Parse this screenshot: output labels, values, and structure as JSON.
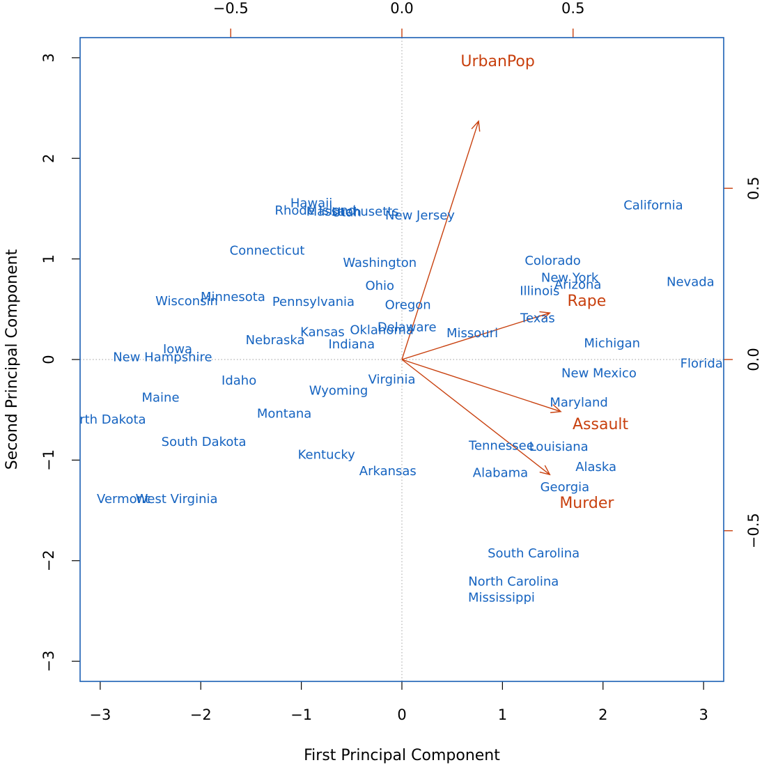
{
  "chart_data": {
    "type": "scatter",
    "subtype": "biplot",
    "xlabel": "First Principal Component",
    "ylabel": "Second Principal Component",
    "xlim": [
      -3.2,
      3.2
    ],
    "ylim": [
      -3.2,
      3.2
    ],
    "x_ticks": [
      -3,
      -2,
      -1,
      0,
      1,
      2,
      3
    ],
    "y_ticks": [
      -3,
      -2,
      -1,
      0,
      1,
      2,
      3
    ],
    "x_tick_labels": [
      "−3",
      "−2",
      "−1",
      "0",
      "1",
      "2",
      "3"
    ],
    "y_tick_labels": [
      "−3",
      "−2",
      "−1",
      "0",
      "1",
      "2",
      "3"
    ],
    "loadings_lim": [
      -0.94,
      0.94
    ],
    "loading_ticks": [
      -0.5,
      0.0,
      0.5
    ],
    "loading_tick_labels": [
      "−0.5",
      "0.0",
      "0.5"
    ],
    "reference_lines": "dotted at x=0 and y=0",
    "colors": {
      "frame": "#1a5fb4",
      "states": "#1563c0",
      "vectors": "#c8400e",
      "axes_text": "#000000"
    },
    "points": [
      {
        "label": "Alabama",
        "x": 0.98,
        "y": -1.13
      },
      {
        "label": "Alaska",
        "x": 1.93,
        "y": -1.07
      },
      {
        "label": "Arizona",
        "x": 1.75,
        "y": 0.74
      },
      {
        "label": "Arkansas",
        "x": -0.14,
        "y": -1.11
      },
      {
        "label": "California",
        "x": 2.5,
        "y": 1.53
      },
      {
        "label": "Colorado",
        "x": 1.5,
        "y": 0.98
      },
      {
        "label": "Connecticut",
        "x": -1.34,
        "y": 1.08
      },
      {
        "label": "Delaware",
        "x": 0.05,
        "y": 0.32
      },
      {
        "label": "Florida",
        "x": 2.98,
        "y": -0.04
      },
      {
        "label": "Georgia",
        "x": 1.62,
        "y": -1.27
      },
      {
        "label": "Hawaii",
        "x": -0.9,
        "y": 1.55
      },
      {
        "label": "Idaho",
        "x": -1.62,
        "y": -0.21
      },
      {
        "label": "Illinois",
        "x": 1.37,
        "y": 0.68
      },
      {
        "label": "Indiana",
        "x": -0.5,
        "y": 0.15
      },
      {
        "label": "Iowa",
        "x": -2.23,
        "y": 0.1
      },
      {
        "label": "Kansas",
        "x": -0.79,
        "y": 0.27
      },
      {
        "label": "Kentucky",
        "x": -0.75,
        "y": -0.95
      },
      {
        "label": "Louisiana",
        "x": 1.56,
        "y": -0.87
      },
      {
        "label": "Maine",
        "x": -2.4,
        "y": -0.38
      },
      {
        "label": "Maryland",
        "x": 1.76,
        "y": -0.43
      },
      {
        "label": "Massachusetts",
        "x": -0.49,
        "y": 1.47
      },
      {
        "label": "Michigan",
        "x": 2.09,
        "y": 0.16
      },
      {
        "label": "Minnesota",
        "x": -1.68,
        "y": 0.62
      },
      {
        "label": "Mississippi",
        "x": 0.99,
        "y": -2.37
      },
      {
        "label": "Missouri",
        "x": 0.7,
        "y": 0.26
      },
      {
        "label": "Montana",
        "x": -1.17,
        "y": -0.54
      },
      {
        "label": "Nebraska",
        "x": -1.26,
        "y": 0.19
      },
      {
        "label": "Nevada",
        "x": 2.87,
        "y": 0.77
      },
      {
        "label": "New Hampshire",
        "x": -2.38,
        "y": 0.02
      },
      {
        "label": "New Jersey",
        "x": 0.18,
        "y": 1.43
      },
      {
        "label": "New Mexico",
        "x": 1.96,
        "y": -0.14
      },
      {
        "label": "New York",
        "x": 1.67,
        "y": 0.81
      },
      {
        "label": "North Carolina",
        "x": 1.11,
        "y": -2.21
      },
      {
        "label": "North Dakota",
        "x": -2.96,
        "y": -0.6
      },
      {
        "label": "Ohio",
        "x": -0.22,
        "y": 0.73
      },
      {
        "label": "Oklahoma",
        "x": -0.2,
        "y": 0.29
      },
      {
        "label": "Oregon",
        "x": 0.06,
        "y": 0.54
      },
      {
        "label": "Pennsylvania",
        "x": -0.88,
        "y": 0.57
      },
      {
        "label": "Rhode Island",
        "x": -0.86,
        "y": 1.48
      },
      {
        "label": "South Carolina",
        "x": 1.31,
        "y": -1.93
      },
      {
        "label": "South Dakota",
        "x": -1.97,
        "y": -0.82
      },
      {
        "label": "Tennessee",
        "x": 0.99,
        "y": -0.86
      },
      {
        "label": "Texas",
        "x": 1.35,
        "y": 0.41
      },
      {
        "label": "Utah",
        "x": -0.55,
        "y": 1.46
      },
      {
        "label": "Vermont",
        "x": -2.77,
        "y": -1.39
      },
      {
        "label": "Virginia",
        "x": -0.1,
        "y": -0.2
      },
      {
        "label": "Washington",
        "x": -0.22,
        "y": 0.96
      },
      {
        "label": "West Virginia",
        "x": -2.24,
        "y": -1.39
      },
      {
        "label": "Wisconsin",
        "x": -2.14,
        "y": 0.58
      },
      {
        "label": "Wyoming",
        "x": -0.63,
        "y": -0.31
      }
    ],
    "vectors": [
      {
        "label": "Murder",
        "x": 0.54,
        "y": -0.42
      },
      {
        "label": "Assault",
        "x": 0.58,
        "y": -0.19
      },
      {
        "label": "UrbanPop",
        "x": 0.28,
        "y": 0.87
      },
      {
        "label": "Rape",
        "x": 0.54,
        "y": 0.17
      }
    ]
  }
}
